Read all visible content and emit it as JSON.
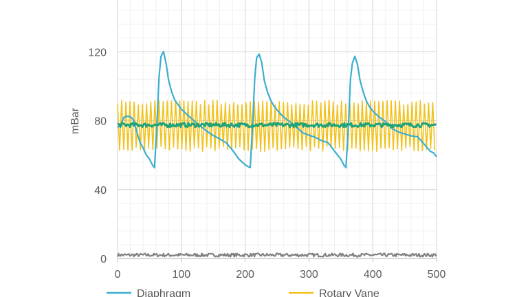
{
  "chart_data": {
    "type": "line",
    "title": "",
    "xlabel": "",
    "ylabel": "mBar",
    "xlim": [
      0,
      500
    ],
    "ylim": [
      0,
      160
    ],
    "x_ticks": [
      0,
      100,
      200,
      300,
      400,
      500
    ],
    "y_ticks": [
      0,
      40,
      80,
      120
    ],
    "grid": true,
    "minor_grid": true,
    "legend_position": "bottom",
    "series": [
      {
        "name": "Diaphragm",
        "color": "#3aaed0",
        "x": [
          0,
          5,
          10,
          15,
          20,
          25,
          30,
          35,
          40,
          45,
          50,
          55,
          58,
          62,
          65,
          68,
          72,
          76,
          80,
          85,
          90,
          95,
          100,
          110,
          120,
          130,
          140,
          150,
          160,
          170,
          180,
          190,
          200,
          205,
          208,
          212,
          215,
          218,
          222,
          226,
          230,
          235,
          240,
          245,
          250,
          260,
          270,
          280,
          290,
          300,
          310,
          320,
          330,
          340,
          350,
          355,
          358,
          362,
          365,
          368,
          372,
          376,
          380,
          385,
          390,
          395,
          400,
          410,
          420,
          430,
          440,
          450,
          460,
          470,
          480,
          490,
          495,
          500
        ],
        "values": [
          76,
          78,
          82,
          83,
          82,
          80,
          74,
          68,
          64,
          60,
          57,
          54,
          53,
          80,
          105,
          117,
          120,
          114,
          104,
          97,
          92,
          89,
          86,
          83,
          80,
          77,
          74,
          72,
          70,
          68,
          63,
          58,
          55,
          53,
          53,
          80,
          105,
          116,
          119,
          114,
          104,
          97,
          92,
          89,
          86,
          82,
          79,
          76,
          73,
          71,
          70,
          69,
          67,
          62,
          57,
          54,
          52,
          78,
          103,
          114,
          118,
          113,
          103,
          96,
          91,
          88,
          86,
          82,
          79,
          76,
          73,
          72,
          71,
          70,
          67,
          63,
          61,
          59
        ]
      },
      {
        "name": "Rotary Vane",
        "color": "#f2c21a",
        "base": 77,
        "amplitude": 15,
        "period": 6.5,
        "x_range": [
          0,
          500
        ]
      },
      {
        "name": "",
        "color": "#20a27a",
        "base": 77.5,
        "amplitude": 1.2,
        "x_range": [
          0,
          500
        ]
      },
      {
        "name": "",
        "color": "#808080",
        "base": 2,
        "amplitude": 1.0,
        "x_range": [
          0,
          500
        ]
      }
    ]
  }
}
